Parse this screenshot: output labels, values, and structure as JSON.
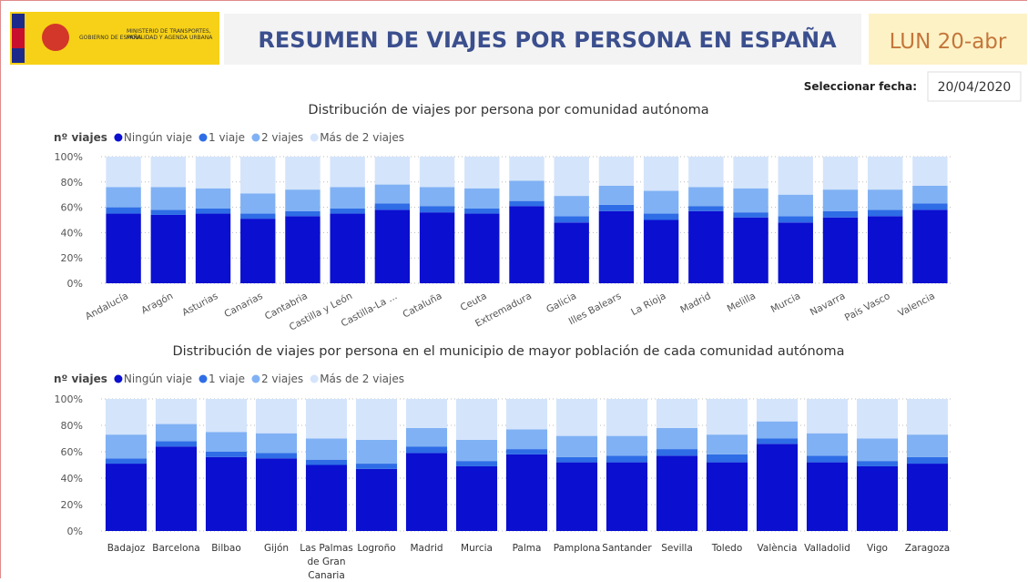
{
  "header": {
    "gov": "GOBIERNO DE ESPAÑA",
    "ministry": "MINISTERIO DE TRANSPORTES, MOVILIDAD Y AGENDA URBANA",
    "title": "RESUMEN DE VIAJES POR PERSONA EN ESPAÑA",
    "day": "LUN 20-abr",
    "date_label": "Seleccionar fecha:",
    "date_value": "20/04/2020"
  },
  "chart_data": [
    {
      "type": "stacked_bar",
      "title": "Distribución de viajes por persona por comunidad autónoma",
      "legend_title": "nº viajes",
      "categories": [
        "Andalucía",
        "Aragón",
        "Asturias",
        "Canarias",
        "Cantabria",
        "Castilla y León",
        "Castilla-La ...",
        "Cataluña",
        "Ceuta",
        "Extremadura",
        "Galicia",
        "Illes Balears",
        "La Rioja",
        "Madrid",
        "Melilla",
        "Murcia",
        "Navarra",
        "País Vasco",
        "Valencia"
      ],
      "series": [
        {
          "name": "Ningún viaje",
          "color": "#0a0fd0",
          "values": [
            55,
            54,
            55,
            51,
            53,
            55,
            58,
            56,
            55,
            61,
            48,
            57,
            50,
            57,
            52,
            48,
            52,
            53,
            58
          ]
        },
        {
          "name": "1 viaje",
          "color": "#2e6de6",
          "values": [
            5,
            4,
            4,
            4,
            4,
            4,
            5,
            5,
            4,
            4,
            5,
            5,
            5,
            4,
            4,
            5,
            5,
            5,
            5
          ]
        },
        {
          "name": "2 viajes",
          "color": "#80b1f4",
          "values": [
            16,
            18,
            16,
            16,
            17,
            17,
            15,
            15,
            16,
            16,
            16,
            15,
            18,
            15,
            19,
            17,
            17,
            16,
            14
          ]
        },
        {
          "name": "Más de 2 viajes",
          "color": "#d4e4fb",
          "values": [
            24,
            24,
            25,
            29,
            26,
            24,
            22,
            24,
            25,
            19,
            31,
            23,
            27,
            24,
            25,
            30,
            26,
            26,
            23
          ]
        }
      ],
      "ylim": [
        0,
        100
      ],
      "yticks": [
        {
          "value": 0,
          "label": "0%"
        },
        {
          "value": 20,
          "label": "20%"
        },
        {
          "value": 40,
          "label": "40%"
        },
        {
          "value": 60,
          "label": "60%"
        },
        {
          "value": 80,
          "label": "80%"
        },
        {
          "value": 100,
          "label": "100%"
        }
      ],
      "grid": true
    },
    {
      "type": "stacked_bar",
      "title": "Distribución de viajes por persona en el municipio de mayor población de cada comunidad autónoma",
      "legend_title": "nº viajes",
      "categories": [
        "Badajoz",
        "Barcelona",
        "Bilbao",
        "Gijón",
        "Las Palmas de Gran Canaria",
        "Logroño",
        "Madrid",
        "Murcia",
        "Palma",
        "Pamplona",
        "Santander",
        "Sevilla",
        "Toledo",
        "València",
        "Valladolid",
        "Vigo",
        "Zaragoza"
      ],
      "series": [
        {
          "name": "Ningún viaje",
          "color": "#0a0fd0",
          "values": [
            51,
            64,
            56,
            55,
            50,
            47,
            59,
            49,
            58,
            52,
            52,
            57,
            52,
            66,
            52,
            49,
            51
          ]
        },
        {
          "name": "1 viaje",
          "color": "#2e6de6",
          "values": [
            4,
            4,
            4,
            4,
            4,
            4,
            5,
            4,
            4,
            4,
            5,
            5,
            6,
            4,
            5,
            4,
            5
          ]
        },
        {
          "name": "2 viajes",
          "color": "#80b1f4",
          "values": [
            18,
            13,
            15,
            15,
            16,
            18,
            14,
            16,
            15,
            16,
            15,
            16,
            15,
            13,
            17,
            17,
            17
          ]
        },
        {
          "name": "Más de 2 viajes",
          "color": "#d4e4fb",
          "values": [
            27,
            19,
            25,
            26,
            30,
            31,
            22,
            31,
            23,
            28,
            28,
            22,
            27,
            17,
            26,
            30,
            27
          ]
        }
      ],
      "ylim": [
        0,
        100
      ],
      "yticks": [
        {
          "value": 0,
          "label": "0%"
        },
        {
          "value": 20,
          "label": "20%"
        },
        {
          "value": 40,
          "label": "40%"
        },
        {
          "value": 60,
          "label": "60%"
        },
        {
          "value": 80,
          "label": "80%"
        },
        {
          "value": 100,
          "label": "100%"
        }
      ],
      "grid": true
    }
  ]
}
